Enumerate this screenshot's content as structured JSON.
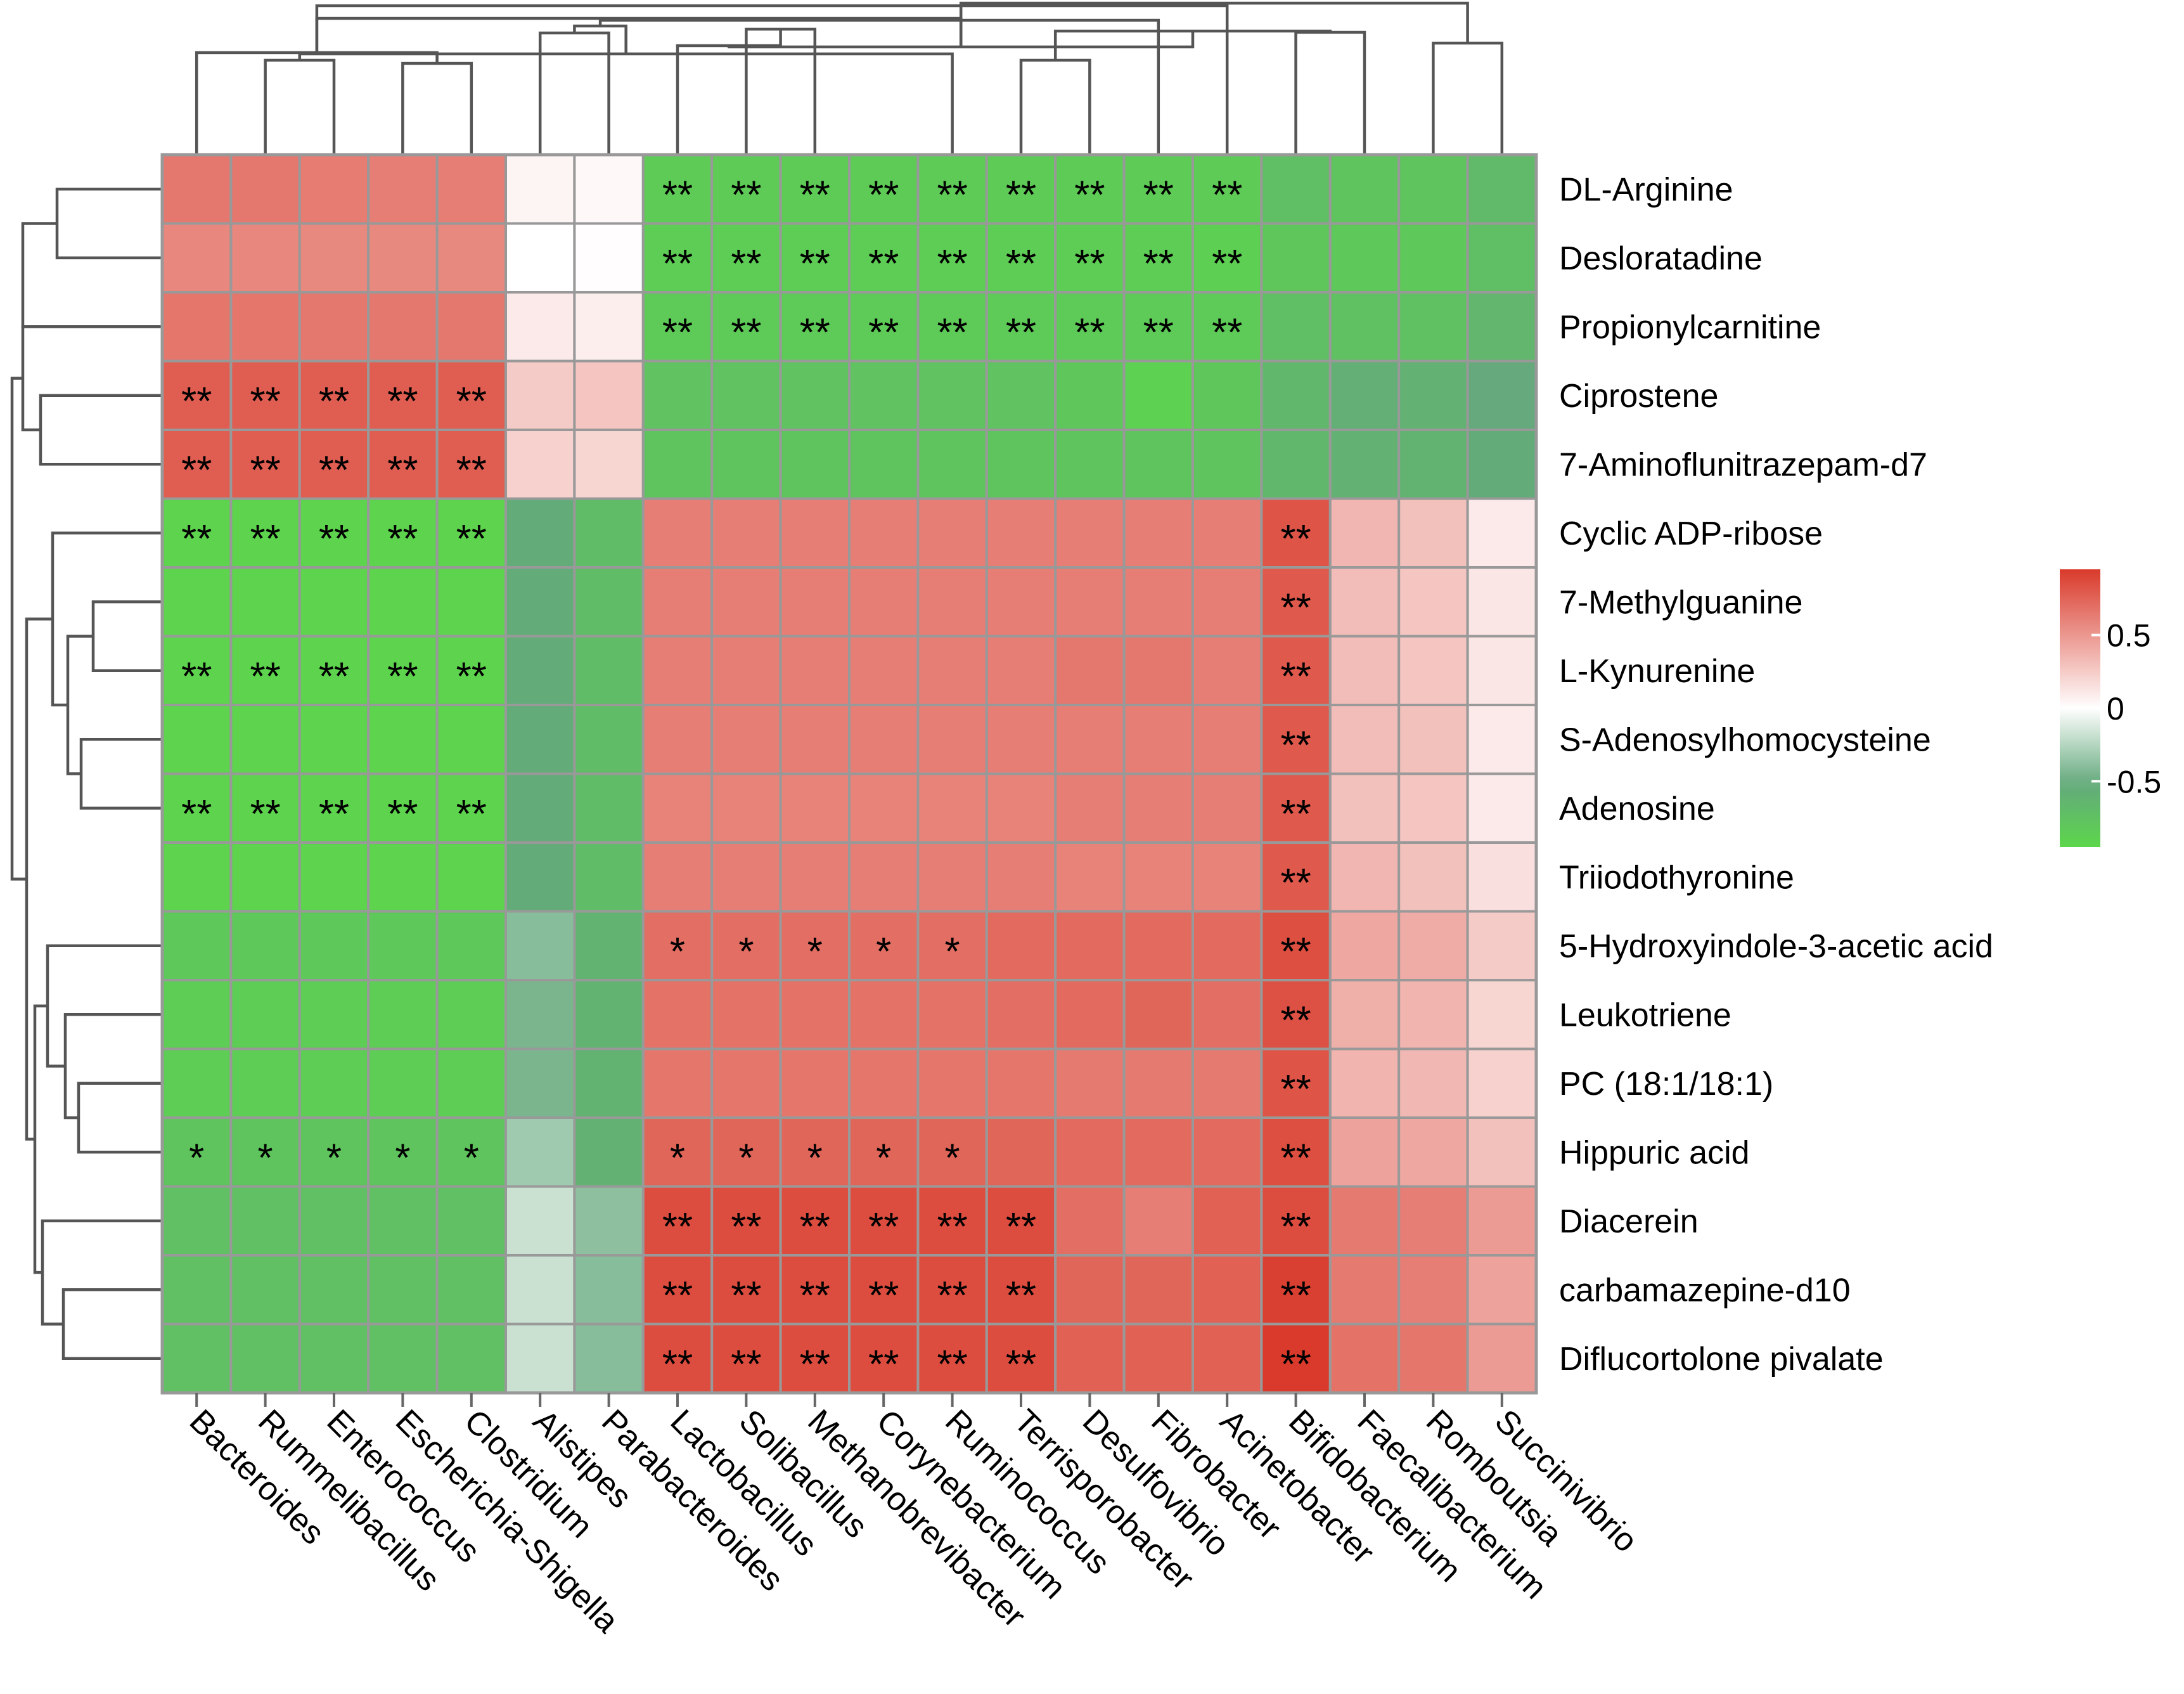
{
  "chart_data": {
    "type": "heatmap",
    "title": "",
    "columns": [
      "Bacteroides",
      "Rummelibacillus",
      "Enterococcus",
      "Escherichia-Shigella",
      "Clostridium",
      "Alistipes",
      "Parabacteroides",
      "Lactobacillus",
      "Solibacillus",
      "Methanobrevibacter",
      "Corynebacterium",
      "Ruminococcus",
      "Terrisporobacter",
      "Desulfovibrio",
      "Fibrobacter",
      "Acinetobacter",
      "Bifidobacterium",
      "Faecalibacterium",
      "Romboutsia",
      "Succinivibrio"
    ],
    "rows": [
      "DL-Arginine",
      "Desloratadine",
      "Propionylcarnitine",
      "Ciprostene",
      "7-Aminoflunitrazepam-d7",
      "Cyclic ADP-ribose",
      "7-Methylguanine",
      "L-Kynurenine",
      "S-Adenosylhomocysteine",
      "Adenosine",
      "Triiodothyronine",
      "5-Hydroxyindole-3-acetic acid",
      "Leukotriene",
      "PC (18:1/18:1)",
      "Hippuric acid",
      "Diacerein",
      "carbamazepine-d10",
      "Diflucortolone pivalate"
    ],
    "values": [
      [
        0.65,
        0.65,
        0.63,
        0.62,
        0.62,
        0.05,
        0.03,
        -0.85,
        -0.85,
        -0.85,
        -0.85,
        -0.85,
        -0.85,
        -0.85,
        -0.85,
        -0.85,
        -0.72,
        -0.78,
        -0.78,
        -0.68
      ],
      [
        0.58,
        0.58,
        0.57,
        0.57,
        0.57,
        0.0,
        0.01,
        -0.86,
        -0.86,
        -0.86,
        -0.86,
        -0.86,
        -0.86,
        -0.86,
        -0.86,
        -0.88,
        -0.8,
        -0.82,
        -0.82,
        -0.72
      ],
      [
        0.66,
        0.66,
        0.65,
        0.65,
        0.65,
        0.1,
        0.08,
        -0.84,
        -0.84,
        -0.84,
        -0.84,
        -0.84,
        -0.84,
        -0.84,
        -0.84,
        -0.84,
        -0.72,
        -0.75,
        -0.75,
        -0.65
      ],
      [
        0.78,
        0.78,
        0.78,
        0.78,
        0.78,
        0.25,
        0.28,
        -0.76,
        -0.76,
        -0.76,
        -0.76,
        -0.76,
        -0.76,
        -0.8,
        -0.9,
        -0.8,
        -0.66,
        -0.58,
        -0.6,
        -0.52
      ],
      [
        0.78,
        0.78,
        0.78,
        0.78,
        0.78,
        0.22,
        0.2,
        -0.78,
        -0.78,
        -0.78,
        -0.78,
        -0.78,
        -0.78,
        -0.78,
        -0.78,
        -0.78,
        -0.66,
        -0.6,
        -0.62,
        -0.54
      ],
      [
        -0.92,
        -0.92,
        -0.92,
        -0.92,
        -0.92,
        -0.55,
        -0.7,
        0.62,
        0.62,
        0.62,
        0.62,
        0.62,
        0.62,
        0.62,
        0.62,
        0.62,
        0.82,
        0.35,
        0.3,
        0.1
      ],
      [
        -0.92,
        -0.92,
        -0.92,
        -0.92,
        -0.92,
        -0.55,
        -0.7,
        0.62,
        0.62,
        0.62,
        0.62,
        0.62,
        0.62,
        0.62,
        0.62,
        0.62,
        0.8,
        0.32,
        0.28,
        0.12
      ],
      [
        -0.92,
        -0.92,
        -0.92,
        -0.92,
        -0.92,
        -0.55,
        -0.7,
        0.62,
        0.62,
        0.62,
        0.62,
        0.62,
        0.62,
        0.65,
        0.65,
        0.62,
        0.8,
        0.32,
        0.28,
        0.12
      ],
      [
        -0.92,
        -0.92,
        -0.92,
        -0.92,
        -0.92,
        -0.55,
        -0.7,
        0.62,
        0.62,
        0.62,
        0.62,
        0.62,
        0.62,
        0.62,
        0.62,
        0.62,
        0.8,
        0.32,
        0.3,
        0.1
      ],
      [
        -0.92,
        -0.92,
        -0.92,
        -0.92,
        -0.92,
        -0.55,
        -0.7,
        0.6,
        0.6,
        0.6,
        0.6,
        0.6,
        0.6,
        0.62,
        0.62,
        0.62,
        0.8,
        0.3,
        0.28,
        0.1
      ],
      [
        -0.92,
        -0.92,
        -0.92,
        -0.92,
        -0.92,
        -0.55,
        -0.7,
        0.62,
        0.62,
        0.62,
        0.62,
        0.62,
        0.62,
        0.6,
        0.6,
        0.6,
        0.8,
        0.35,
        0.3,
        0.15
      ],
      [
        -0.82,
        -0.82,
        -0.82,
        -0.82,
        -0.82,
        -0.4,
        -0.62,
        0.7,
        0.7,
        0.7,
        0.7,
        0.7,
        0.72,
        0.72,
        0.72,
        0.72,
        0.85,
        0.42,
        0.4,
        0.25
      ],
      [
        -0.86,
        -0.86,
        -0.86,
        -0.86,
        -0.86,
        -0.45,
        -0.62,
        0.68,
        0.68,
        0.68,
        0.68,
        0.68,
        0.7,
        0.72,
        0.74,
        0.7,
        0.84,
        0.38,
        0.36,
        0.2
      ],
      [
        -0.86,
        -0.86,
        -0.86,
        -0.86,
        -0.86,
        -0.45,
        -0.62,
        0.66,
        0.66,
        0.66,
        0.66,
        0.66,
        0.66,
        0.64,
        0.64,
        0.64,
        0.82,
        0.36,
        0.34,
        0.22
      ],
      [
        -0.78,
        -0.78,
        -0.78,
        -0.78,
        -0.78,
        -0.32,
        -0.6,
        0.74,
        0.74,
        0.74,
        0.74,
        0.74,
        0.74,
        0.72,
        0.72,
        0.72,
        0.85,
        0.45,
        0.42,
        0.3
      ],
      [
        -0.74,
        -0.74,
        -0.74,
        -0.74,
        -0.74,
        -0.18,
        -0.38,
        0.86,
        0.86,
        0.86,
        0.86,
        0.86,
        0.86,
        0.7,
        0.62,
        0.76,
        0.86,
        0.64,
        0.62,
        0.48
      ],
      [
        -0.74,
        -0.74,
        -0.74,
        -0.74,
        -0.74,
        -0.18,
        -0.4,
        0.86,
        0.86,
        0.86,
        0.86,
        0.86,
        0.86,
        0.74,
        0.74,
        0.76,
        0.92,
        0.64,
        0.62,
        0.45
      ],
      [
        -0.74,
        -0.74,
        -0.74,
        -0.74,
        -0.74,
        -0.18,
        -0.4,
        0.86,
        0.86,
        0.86,
        0.86,
        0.86,
        0.86,
        0.76,
        0.76,
        0.76,
        0.95,
        0.68,
        0.66,
        0.48
      ]
    ],
    "significance": [
      [
        "",
        "",
        "",
        "",
        "",
        "",
        "",
        "**",
        "**",
        "**",
        "**",
        "**",
        "**",
        "**",
        "**",
        "**",
        "",
        "",
        "",
        ""
      ],
      [
        "",
        "",
        "",
        "",
        "",
        "",
        "",
        "**",
        "**",
        "**",
        "**",
        "**",
        "**",
        "**",
        "**",
        "**",
        "",
        "",
        "",
        ""
      ],
      [
        "",
        "",
        "",
        "",
        "",
        "",
        "",
        "**",
        "**",
        "**",
        "**",
        "**",
        "**",
        "**",
        "**",
        "**",
        "",
        "",
        "",
        ""
      ],
      [
        "**",
        "**",
        "**",
        "**",
        "**",
        "",
        "",
        "",
        "",
        "",
        "",
        "",
        "",
        "",
        "",
        "",
        "",
        "",
        "",
        ""
      ],
      [
        "**",
        "**",
        "**",
        "**",
        "**",
        "",
        "",
        "",
        "",
        "",
        "",
        "",
        "",
        "",
        "",
        "",
        "",
        "",
        "",
        ""
      ],
      [
        "**",
        "**",
        "**",
        "**",
        "**",
        "",
        "",
        "",
        "",
        "",
        "",
        "",
        "",
        "",
        "",
        "",
        "**",
        "",
        "",
        ""
      ],
      [
        "",
        "",
        "",
        "",
        "",
        "",
        "",
        "",
        "",
        "",
        "",
        "",
        "",
        "",
        "",
        "",
        "**",
        "",
        "",
        ""
      ],
      [
        "**",
        "**",
        "**",
        "**",
        "**",
        "",
        "",
        "",
        "",
        "",
        "",
        "",
        "",
        "",
        "",
        "",
        "**",
        "",
        "",
        ""
      ],
      [
        "",
        "",
        "",
        "",
        "",
        "",
        "",
        "",
        "",
        "",
        "",
        "",
        "",
        "",
        "",
        "",
        "**",
        "",
        "",
        ""
      ],
      [
        "**",
        "**",
        "**",
        "**",
        "**",
        "",
        "",
        "",
        "",
        "",
        "",
        "",
        "",
        "",
        "",
        "",
        "**",
        "",
        "",
        ""
      ],
      [
        "",
        "",
        "",
        "",
        "",
        "",
        "",
        "",
        "",
        "",
        "",
        "",
        "",
        "",
        "",
        "",
        "**",
        "",
        "",
        ""
      ],
      [
        "",
        "",
        "",
        "",
        "",
        "",
        "",
        "*",
        "*",
        "*",
        "*",
        "*",
        "",
        "",
        "",
        "",
        "**",
        "",
        "",
        ""
      ],
      [
        "",
        "",
        "",
        "",
        "",
        "",
        "",
        "",
        "",
        "",
        "",
        "",
        "",
        "",
        "",
        "",
        "**",
        "",
        "",
        ""
      ],
      [
        "",
        "",
        "",
        "",
        "",
        "",
        "",
        "",
        "",
        "",
        "",
        "",
        "",
        "",
        "",
        "",
        "**",
        "",
        "",
        ""
      ],
      [
        "*",
        "*",
        "*",
        "*",
        "*",
        "",
        "",
        "*",
        "*",
        "*",
        "*",
        "*",
        "",
        "",
        "",
        "",
        "**",
        "",
        "",
        ""
      ],
      [
        "",
        "",
        "",
        "",
        "",
        "",
        "",
        "**",
        "**",
        "**",
        "**",
        "**",
        "**",
        "",
        "",
        "",
        "**",
        "",
        "",
        ""
      ],
      [
        "",
        "",
        "",
        "",
        "",
        "",
        "",
        "**",
        "**",
        "**",
        "**",
        "**",
        "**",
        "",
        "",
        "",
        "**",
        "",
        "",
        ""
      ],
      [
        "",
        "",
        "",
        "",
        "",
        "",
        "",
        "**",
        "**",
        "**",
        "**",
        "**",
        "**",
        "",
        "",
        "",
        "**",
        "",
        "",
        ""
      ]
    ],
    "color_scale": {
      "min": -0.95,
      "max": 0.95,
      "low": "#5cd64b",
      "mid_low": "#64a97c",
      "mid": "#ffffff",
      "high": "#d93a2b"
    },
    "legend": {
      "ticks": [
        0.5,
        0,
        -0.5
      ],
      "tick_labels": [
        "0.5",
        "0",
        "-0.5"
      ],
      "position": "right"
    },
    "grid_color": "#999999",
    "dendrogram_color": "#555555"
  }
}
